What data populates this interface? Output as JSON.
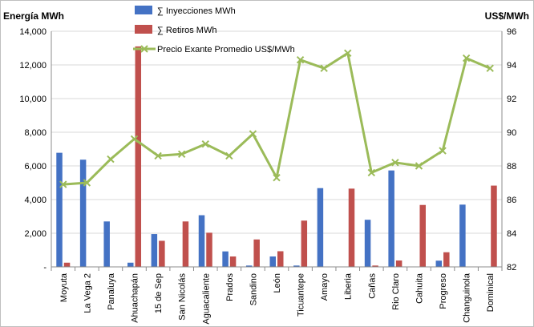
{
  "chart_data": {
    "type": "bar",
    "y_left_label": "Energía MWh",
    "y_right_label": "US$/MWh",
    "y_left_lim": [
      0,
      14000
    ],
    "y_right_lim": [
      82,
      96
    ],
    "y_left_ticks": [
      "-",
      "2,000",
      "4,000",
      "6,000",
      "8,000",
      "10,000",
      "12,000",
      "14,000"
    ],
    "y_right_ticks": [
      "82",
      "84",
      "86",
      "88",
      "90",
      "92",
      "94",
      "96"
    ],
    "grid": true,
    "legend_position": "top-center",
    "categories": [
      "Moyuta",
      "La Vega 2",
      "Panaluya",
      "Ahuachapán",
      "15 de Sep",
      "San Nicolás",
      "Aguacaliente",
      "Prados",
      "Sandino",
      "León",
      "Ticuantepe",
      "Amayo",
      "Liberia",
      "Cañas",
      "Rio Claro",
      "Cahuita",
      "Progreso",
      "Changuinola",
      "Dominical"
    ],
    "series": [
      {
        "name": "∑ Inyecciones MWh",
        "type": "bar",
        "axis": "left",
        "color": "#4472C4",
        "values": [
          6780,
          6370,
          2700,
          250,
          1950,
          0,
          3070,
          920,
          80,
          620,
          80,
          4680,
          0,
          2800,
          5730,
          0,
          370,
          3700,
          0
        ]
      },
      {
        "name": "∑ Retiros MWh",
        "type": "bar",
        "axis": "left",
        "color": "#C0504D",
        "values": [
          250,
          0,
          0,
          13100,
          1550,
          2700,
          2030,
          620,
          1630,
          930,
          2750,
          0,
          4650,
          80,
          380,
          3680,
          870,
          0,
          4830
        ]
      },
      {
        "name": "Precio Exante Promedio US$/MWh",
        "type": "line",
        "axis": "right",
        "color": "#9BBB59",
        "values": [
          86.9,
          87.0,
          88.4,
          89.6,
          88.6,
          88.7,
          89.3,
          88.6,
          89.9,
          87.3,
          94.3,
          93.8,
          94.7,
          87.6,
          88.2,
          88.0,
          88.9,
          94.4,
          93.8
        ]
      }
    ]
  }
}
